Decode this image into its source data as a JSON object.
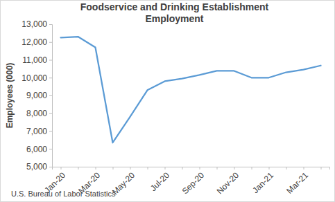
{
  "chart_data": {
    "type": "line",
    "title": "Foodservice and Drinking Establishment Employment",
    "y_label": "Employees (000)",
    "source": "U.S. Bureau of Labor Statistics",
    "categories": [
      "Jan-20",
      null,
      "Mar-20",
      null,
      "May-20",
      null,
      "Jul-20",
      null,
      "Sep-20",
      null,
      "Nov-20",
      null,
      "Jan-21",
      null,
      "Mar-21",
      null
    ],
    "values": [
      12250,
      12300,
      11700,
      6350,
      7800,
      9300,
      9800,
      9950,
      10150,
      10380,
      10380,
      10000,
      10000,
      10300,
      10450,
      10680
    ],
    "color": "#5b9bd5",
    "ylim": [
      5000,
      13000
    ],
    "yticks": [
      {
        "value": 5000,
        "label": "5,000"
      },
      {
        "value": 6000,
        "label": "6,000"
      },
      {
        "value": 7000,
        "label": "7,000"
      },
      {
        "value": 8000,
        "label": "8,000"
      },
      {
        "value": 9000,
        "label": "9,000"
      },
      {
        "value": 10000,
        "label": "10,000"
      },
      {
        "value": 11000,
        "label": "11,000"
      },
      {
        "value": 12000,
        "label": "12,000"
      },
      {
        "value": 13000,
        "label": "13,000"
      }
    ],
    "grid": false
  }
}
